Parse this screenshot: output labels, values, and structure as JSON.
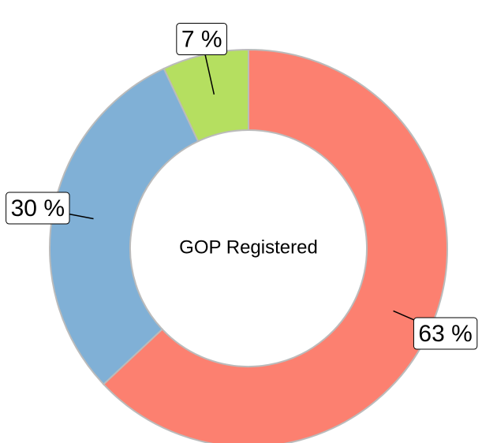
{
  "chart_data": {
    "type": "donut",
    "center_label": "GOP Registered",
    "values": [
      63,
      30,
      7
    ],
    "value_labels": [
      "63 %",
      "30 %",
      "7 %"
    ],
    "colors": [
      "#fc8070",
      "#80b0d6",
      "#b5df60"
    ]
  }
}
